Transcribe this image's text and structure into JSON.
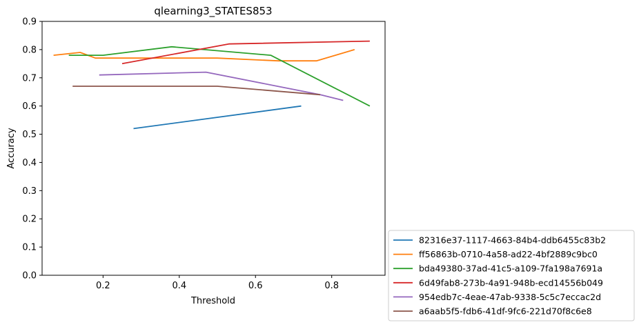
{
  "chart_data": {
    "type": "line",
    "title": "qlearning3_STATES853",
    "xlabel": "Threshold",
    "ylabel": "Accuracy",
    "xlim": [
      0.04,
      0.94
    ],
    "ylim": [
      0.0,
      0.9
    ],
    "xticks": [
      0.2,
      0.4,
      0.6,
      0.8
    ],
    "xtick_labels": [
      "0.2",
      "0.4",
      "0.6",
      "0.8"
    ],
    "yticks": [
      0.0,
      0.1,
      0.2,
      0.3,
      0.4,
      0.5,
      0.6,
      0.7,
      0.8,
      0.9
    ],
    "ytick_labels": [
      "0.0",
      "0.1",
      "0.2",
      "0.3",
      "0.4",
      "0.5",
      "0.6",
      "0.7",
      "0.8",
      "0.9"
    ],
    "grid": false,
    "legend_position": "outside-bottom-right",
    "series": [
      {
        "name": "82316e37-1117-4663-84b4-ddb6455c83b2",
        "color": "#1f77b4",
        "x": [
          0.28,
          0.72
        ],
        "y": [
          0.52,
          0.6
        ]
      },
      {
        "name": "ff56863b-0710-4a58-ad22-4bf2889c9bc0",
        "color": "#ff7f0e",
        "x": [
          0.07,
          0.14,
          0.18,
          0.5,
          0.66,
          0.76,
          0.86
        ],
        "y": [
          0.78,
          0.79,
          0.77,
          0.77,
          0.76,
          0.76,
          0.8
        ]
      },
      {
        "name": "bda49380-37ad-41c5-a109-7fa198a7691a",
        "color": "#2ca02c",
        "x": [
          0.11,
          0.2,
          0.38,
          0.64,
          0.9
        ],
        "y": [
          0.78,
          0.78,
          0.81,
          0.78,
          0.6
        ]
      },
      {
        "name": "6d49fab8-273b-4a91-948b-ecd14556b049",
        "color": "#d62728",
        "x": [
          0.25,
          0.53,
          0.9
        ],
        "y": [
          0.75,
          0.82,
          0.83
        ]
      },
      {
        "name": "954edb7c-4eae-47ab-9338-5c5c7eccac2d",
        "color": "#9467bd",
        "x": [
          0.19,
          0.47,
          0.77,
          0.83
        ],
        "y": [
          0.71,
          0.72,
          0.64,
          0.62
        ]
      },
      {
        "name": "a6aab5f5-fdb6-41df-9fc6-221d70f8c6e8",
        "color": "#8c564b",
        "x": [
          0.12,
          0.5,
          0.77
        ],
        "y": [
          0.67,
          0.67,
          0.64
        ]
      }
    ]
  }
}
